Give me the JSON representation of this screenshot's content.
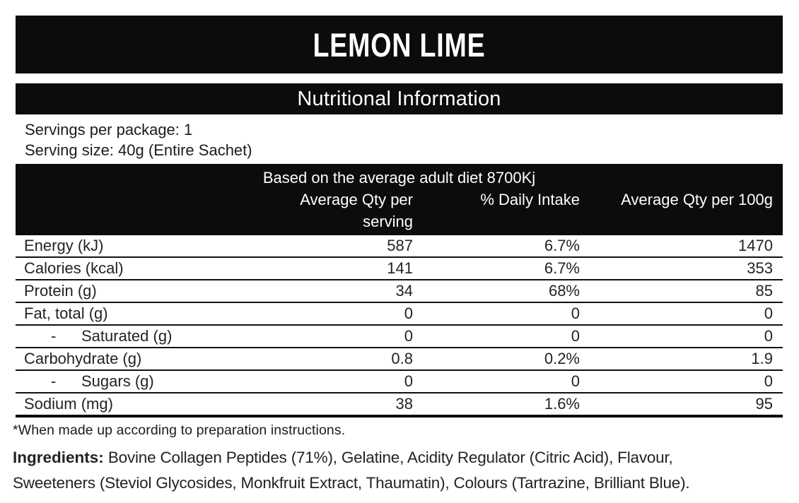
{
  "title": "LEMON LIME",
  "subtitle": "Nutritional Information",
  "servings": {
    "per_package": "Servings per package: 1",
    "size": "Serving size: 40g (Entire Sachet)"
  },
  "table": {
    "based_on": "Based on the average adult diet 8700Kj",
    "columns": [
      "Average Qty per serving",
      "% Daily Intake",
      "Average Qty per 100g"
    ],
    "rows": [
      {
        "label": "Energy (kJ)",
        "per_serving": "587",
        "daily_intake": "6.7%",
        "per_100g": "1470"
      },
      {
        "label": "Calories (kcal)",
        "per_serving": "141",
        "daily_intake": "6.7%",
        "per_100g": "353"
      },
      {
        "label": "Protein (g)",
        "per_serving": "34",
        "daily_intake": "68%",
        "per_100g": "85"
      },
      {
        "label": "Fat, total (g)",
        "per_serving": "0",
        "daily_intake": "0",
        "per_100g": "0"
      },
      {
        "label": "Saturated (g)",
        "prefix": "-",
        "per_serving": "0",
        "daily_intake": "0",
        "per_100g": "0"
      },
      {
        "label": "Carbohydrate (g)",
        "per_serving": "0.8",
        "daily_intake": "0.2%",
        "per_100g": "1.9"
      },
      {
        "label": "Sugars (g)",
        "prefix": "-",
        "per_serving": "0",
        "daily_intake": "0",
        "per_100g": "0"
      },
      {
        "label": "Sodium (mg)",
        "per_serving": "38",
        "daily_intake": "1.6%",
        "per_100g": "95"
      }
    ]
  },
  "footnote": "*When made up according to preparation instructions.",
  "ingredients": {
    "heading": "Ingredients:",
    "line1": " Bovine Collagen Peptides (71%), Gelatine, Acidity Regulator (Citric Acid), Flavour,",
    "line2": "Sweeteners (Steviol Glycosides, Monkfruit Extract, Thaumatin), Colours (Tartrazine, Brilliant Blue)."
  },
  "colors": {
    "bar_background": "#0c0c0c",
    "bar_text": "#ffffff",
    "body_text": "#232323",
    "rule": "#111111"
  }
}
